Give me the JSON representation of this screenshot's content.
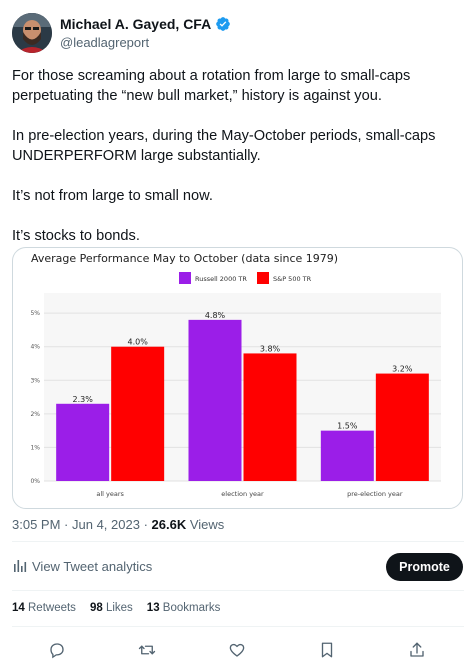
{
  "author": {
    "name": "Michael A. Gayed, CFA",
    "handle": "@leadlagreport"
  },
  "tweet": {
    "paragraphs": [
      "For those screaming about a rotation from large to small-caps perpetuating the “new bull market,” history is against you.",
      "In pre-election years, during the May-October periods, small-caps UNDERPERFORM large substantially.",
      "It’s not from large to small now.",
      "It’s stocks to bonds."
    ]
  },
  "chart_data": {
    "type": "bar",
    "title": "Average Performance May to October (data since 1979)",
    "categories": [
      "all years",
      "election year",
      "pre-election year"
    ],
    "series": [
      {
        "name": "Russell 2000 TR",
        "color": "#9b1ee8",
        "values": [
          2.3,
          4.8,
          1.5
        ],
        "labels": [
          "2.3%",
          "4.8%",
          "1.5%"
        ]
      },
      {
        "name": "S&P 500 TR",
        "color": "#ff0000",
        "values": [
          4.0,
          3.8,
          3.2
        ],
        "labels": [
          "4.0%",
          "3.8%",
          "3.2%"
        ]
      }
    ],
    "yticks": [
      "0%",
      "1%",
      "2%",
      "3%",
      "4%",
      "5%"
    ],
    "ylim": [
      0,
      5.6
    ],
    "grid": true,
    "legend": "top-center"
  },
  "meta": {
    "time": "3:05 PM",
    "date": "Jun 4, 2023",
    "views_count": "26.6K",
    "views_label": "Views"
  },
  "analytics": {
    "label": "View Tweet analytics",
    "promote": "Promote"
  },
  "stats": {
    "retweets_count": "14",
    "retweets_label": "Retweets",
    "likes_count": "98",
    "likes_label": "Likes",
    "bookmarks_count": "13",
    "bookmarks_label": "Bookmarks"
  },
  "icons": {
    "verified": "verified-badge-icon",
    "reply": "reply-icon",
    "retweet": "retweet-icon",
    "like": "like-icon",
    "bookmark": "bookmark-icon",
    "share": "share-icon",
    "analytics": "analytics-bars-icon",
    "accent": "#1d9bf0"
  }
}
